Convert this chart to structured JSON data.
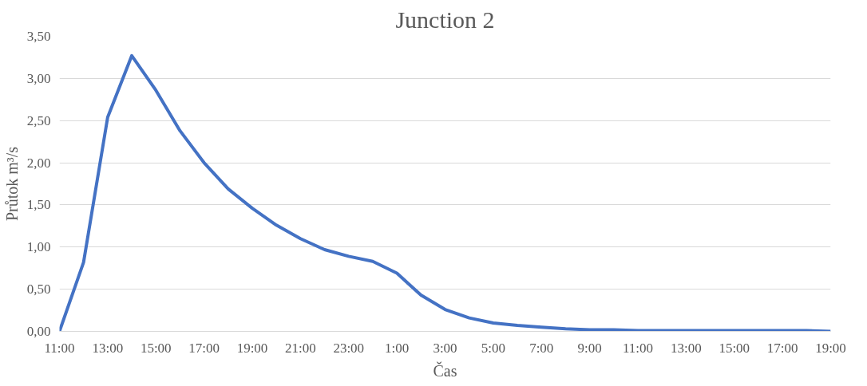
{
  "chart_data": {
    "type": "line",
    "title": "Junction 2",
    "xlabel": "Čas",
    "ylabel": "Průtok m³/s",
    "categories": [
      "11:00",
      null,
      "13:00",
      null,
      "15:00",
      null,
      "17:00",
      null,
      "19:00",
      null,
      "21:00",
      null,
      "23:00",
      null,
      "1:00",
      null,
      "3:00",
      null,
      "5:00",
      null,
      "7:00",
      null,
      "9:00",
      null,
      "11:00",
      null,
      "13:00",
      null,
      "15:00",
      null,
      "17:00",
      null,
      "19:00"
    ],
    "series": [
      {
        "color": "#4472c4",
        "values": [
          0,
          0.82,
          2.54,
          3.27,
          2.86,
          2.38,
          2.0,
          1.69,
          1.46,
          1.26,
          1.1,
          0.97,
          0.89,
          0.83,
          0.69,
          0.43,
          0.26,
          0.16,
          0.1,
          0.07,
          0.05,
          0.03,
          0.02,
          0.02,
          0.01,
          0.01,
          0.01,
          0.01,
          0.01,
          0.01,
          0.01,
          0.01,
          0.0
        ]
      }
    ],
    "ylim": [
      0,
      3.5
    ],
    "yticks": [
      {
        "value": 0,
        "label": "0,00"
      },
      {
        "value": 0.5,
        "label": "0,50"
      },
      {
        "value": 1,
        "label": "1,00"
      },
      {
        "value": 1.5,
        "label": "1,50"
      },
      {
        "value": 2,
        "label": "2,00"
      },
      {
        "value": 2.5,
        "label": "2,50"
      },
      {
        "value": 3,
        "label": "3,00"
      },
      {
        "value": 3.5,
        "label": "3,50"
      }
    ],
    "grid": "y",
    "marker": "none",
    "line_style": "solid"
  }
}
